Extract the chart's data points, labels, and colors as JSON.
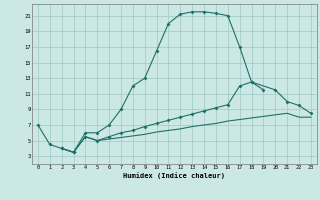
{
  "xlabel": "Humidex (Indice chaleur)",
  "background_color": "#cce8e5",
  "grid_color": "#a0c8c4",
  "line_color": "#1e7068",
  "xlim": [
    -0.5,
    23.5
  ],
  "ylim": [
    2,
    22.5
  ],
  "xticks": [
    0,
    1,
    2,
    3,
    4,
    5,
    6,
    7,
    8,
    9,
    10,
    11,
    12,
    13,
    14,
    15,
    16,
    17,
    18,
    19,
    20,
    21,
    22,
    23
  ],
  "yticks": [
    3,
    5,
    7,
    9,
    11,
    13,
    15,
    17,
    19,
    21
  ],
  "curve1_x": [
    0,
    1,
    2,
    3,
    4,
    5,
    6,
    7,
    8,
    9,
    10,
    11,
    12,
    13,
    14,
    15,
    16,
    17,
    18,
    19
  ],
  "curve1_y": [
    7,
    4.5,
    4,
    3.5,
    6,
    6,
    7,
    9,
    12,
    13,
    16.5,
    20,
    21.2,
    21.5,
    21.5,
    21.3,
    21,
    17,
    12.5,
    11.5
  ],
  "curve2_x": [
    2,
    3,
    4,
    5,
    6,
    7,
    8,
    9,
    10,
    11,
    12,
    13,
    14,
    15,
    16,
    17,
    18,
    20,
    21,
    22,
    23
  ],
  "curve2_y": [
    4,
    3.5,
    5.5,
    5.0,
    5.5,
    6.0,
    6.3,
    6.8,
    7.2,
    7.6,
    8.0,
    8.4,
    8.8,
    9.2,
    9.6,
    12.0,
    12.5,
    11.5,
    10.0,
    9.5,
    8.5
  ],
  "curve3_x": [
    2,
    3,
    4,
    5,
    6,
    7,
    8,
    9,
    10,
    11,
    12,
    13,
    14,
    15,
    16,
    17,
    18,
    19,
    20,
    21,
    22,
    23
  ],
  "curve3_y": [
    4,
    3.5,
    5.5,
    5.0,
    5.2,
    5.4,
    5.6,
    5.8,
    6.1,
    6.3,
    6.5,
    6.8,
    7.0,
    7.2,
    7.5,
    7.7,
    7.9,
    8.1,
    8.3,
    8.5,
    8.0,
    8.0
  ]
}
